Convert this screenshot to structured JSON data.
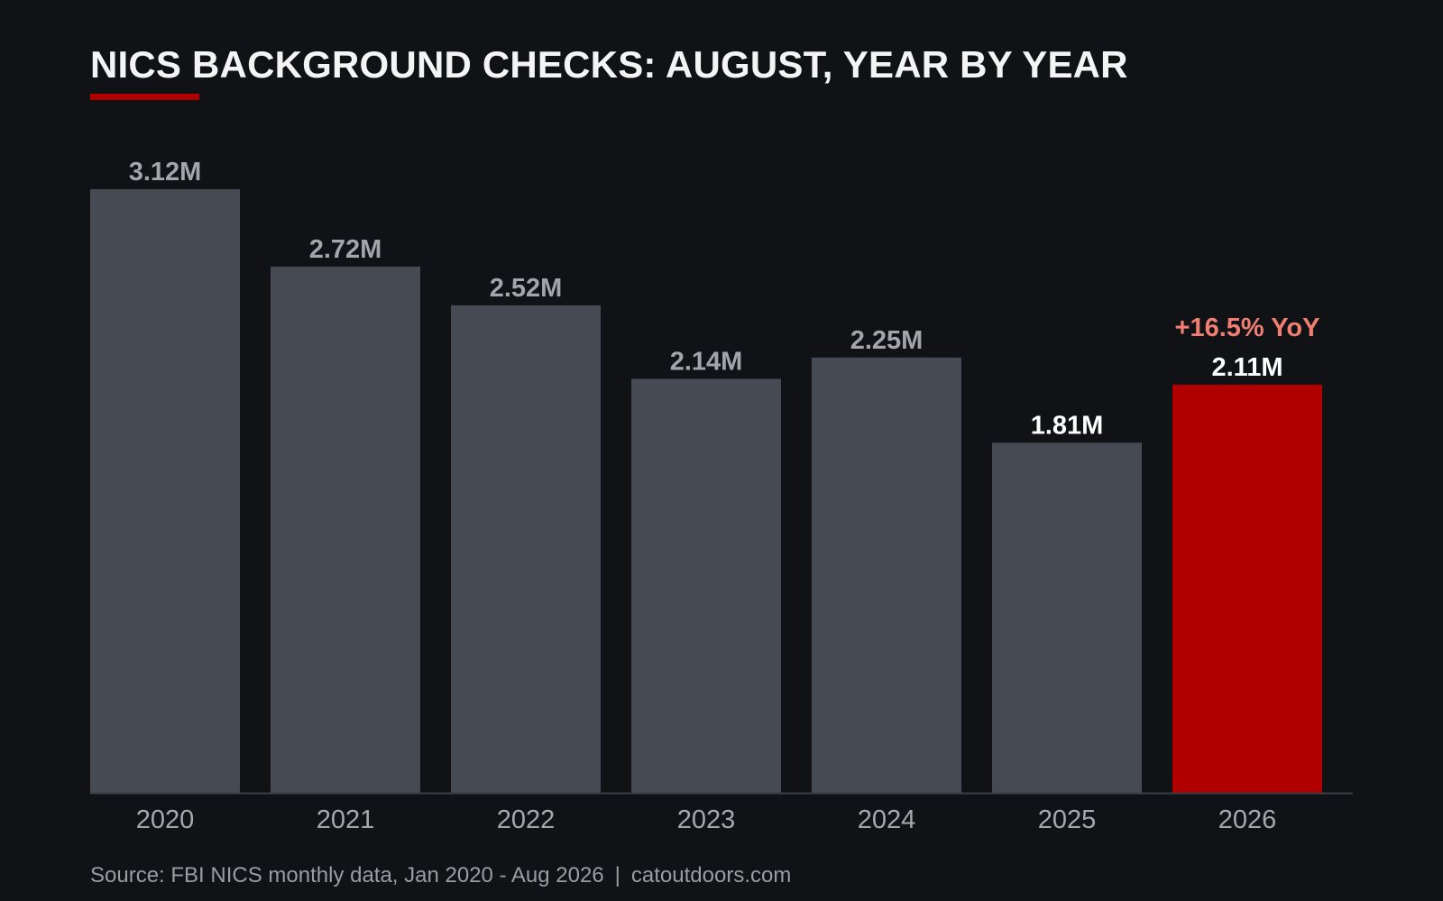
{
  "title": "NICS BACKGROUND CHECKS: AUGUST, YEAR BY YEAR",
  "footer": {
    "source": "Source: FBI NICS monthly data, Jan 2020 - Aug 2026",
    "separator": "|",
    "site": "catoutdoors.com"
  },
  "colors": {
    "background": "#111216",
    "bar": "#464a52",
    "highlight": "#b00000",
    "annotation": "#f07f72",
    "label_muted": "#a3a5ab",
    "label_bright": "#ffffff",
    "axis": "#3a3d44"
  },
  "chart_data": {
    "type": "bar",
    "title": "NICS BACKGROUND CHECKS: AUGUST, YEAR BY YEAR",
    "xlabel": "",
    "ylabel": "",
    "categories": [
      "2020",
      "2021",
      "2022",
      "2023",
      "2024",
      "2025",
      "2026"
    ],
    "values": [
      3.12,
      2.72,
      2.52,
      2.14,
      2.25,
      1.81,
      2.11
    ],
    "data_labels": [
      "3.12M",
      "2.72M",
      "2.52M",
      "2.14M",
      "2.25M",
      "1.81M",
      "2.11M"
    ],
    "highlight_index": 6,
    "annotation": {
      "category": "2026",
      "text": "+16.5% YoY"
    },
    "ylim": [
      0,
      3.12
    ],
    "grid": false,
    "legend": "none"
  }
}
